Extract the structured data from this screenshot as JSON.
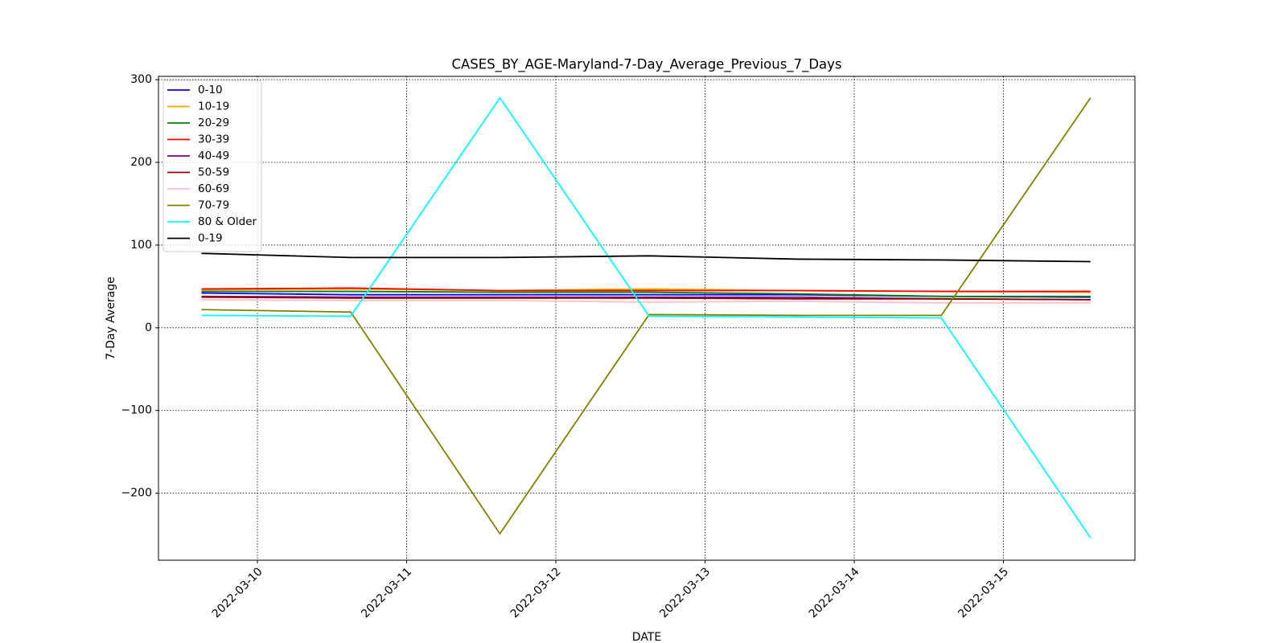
{
  "chart_data": {
    "type": "line",
    "title": "CASES_BY_AGE-Maryland-7-Day_Average_Previous_7_Days",
    "x_label": "DATE",
    "y_label": "7-Day Average",
    "x": [
      "2022-03-09 15:00",
      "2022-03-10 15:00",
      "2022-03-11 15:00",
      "2022-03-12 15:00",
      "2022-03-13 15:00",
      "2022-03-14 14:00",
      "2022-03-15 14:00"
    ],
    "series": [
      {
        "name": "0-10",
        "color": "#0000ff",
        "values": [
          42,
          40,
          40,
          40,
          40,
          38,
          37
        ]
      },
      {
        "name": "10-19",
        "color": "#ffa500",
        "values": [
          46,
          47,
          45,
          47,
          45,
          44,
          43
        ]
      },
      {
        "name": "20-29",
        "color": "#008000",
        "values": [
          44,
          44,
          43,
          43,
          41,
          38,
          38
        ]
      },
      {
        "name": "30-39",
        "color": "#ff0000",
        "values": [
          47,
          48,
          45,
          45,
          45,
          44,
          44
        ]
      },
      {
        "name": "40-49",
        "color": "#800080",
        "values": [
          38,
          37,
          37,
          37,
          37,
          35,
          34
        ]
      },
      {
        "name": "50-59",
        "color": "#8b0000",
        "values": [
          37,
          36,
          36,
          36,
          35,
          35,
          34
        ]
      },
      {
        "name": "60-69",
        "color": "#ffc0cb",
        "values": [
          34,
          33,
          33,
          31,
          32,
          30,
          30
        ]
      },
      {
        "name": "70-79",
        "color": "#808000",
        "values": [
          22,
          19,
          -249,
          16,
          15,
          15,
          278
        ]
      },
      {
        "name": "80 & Older",
        "color": "#00ffff",
        "values": [
          15,
          14,
          278,
          14,
          13,
          12,
          -254
        ]
      },
      {
        "name": "0-19",
        "color": "#000000",
        "values": [
          90,
          85,
          85,
          87,
          83,
          82,
          80
        ]
      }
    ],
    "xlim": [
      "2022-03-09 08:05",
      "2022-03-15 21:09"
    ],
    "xticks": [
      "2022-03-10",
      "2022-03-11",
      "2022-03-12",
      "2022-03-13",
      "2022-03-14",
      "2022-03-15"
    ],
    "ylim": [
      -281,
      304
    ],
    "yticks": [
      {
        "value": -200,
        "label": "−200"
      },
      {
        "value": -100,
        "label": "−100"
      },
      0,
      100,
      200,
      300
    ],
    "grid": true,
    "legend": "upper left"
  }
}
